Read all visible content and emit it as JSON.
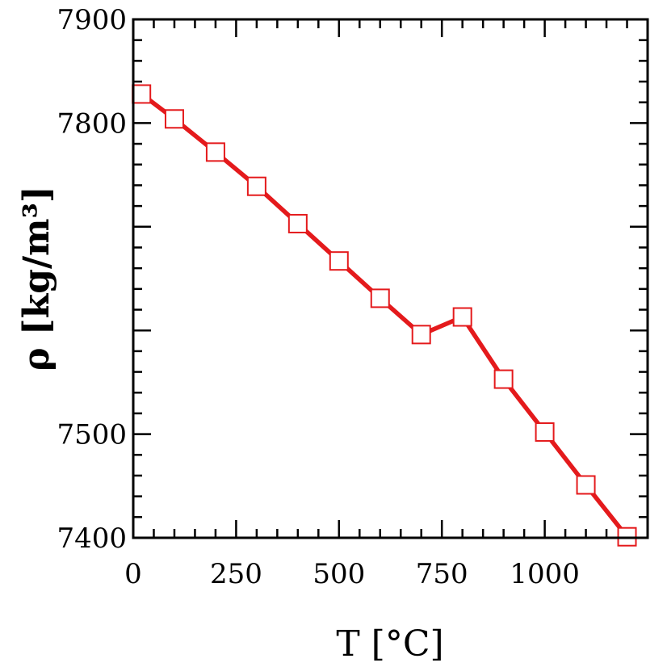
{
  "chart_data": {
    "type": "line",
    "title": "",
    "xlabel": "T [°C]",
    "ylabel": "ρ [kg/m³]",
    "xlim": [
      0,
      1250
    ],
    "ylim": [
      7400,
      7900
    ],
    "xticks": [
      0,
      250,
      500,
      750,
      1000
    ],
    "xtick_labels": [
      "0",
      "250",
      "500",
      "750",
      "1000"
    ],
    "x_minor_step": 50,
    "yticks": [
      7400,
      7500,
      7600,
      7700,
      7800,
      7900
    ],
    "ytick_labels": [
      "7400",
      "7500",
      "",
      "",
      "7800",
      "7900"
    ],
    "y_minor_step": 20,
    "grid": false,
    "series": [
      {
        "color": "#e41a1c",
        "marker": "open-square",
        "x": [
          20,
          100,
          200,
          300,
          400,
          500,
          600,
          700,
          800,
          900,
          1000,
          1100,
          1200
        ],
        "y": [
          7828,
          7804,
          7772,
          7739,
          7703,
          7667,
          7631,
          7596,
          7613,
          7553,
          7502,
          7451,
          7401
        ]
      }
    ]
  }
}
